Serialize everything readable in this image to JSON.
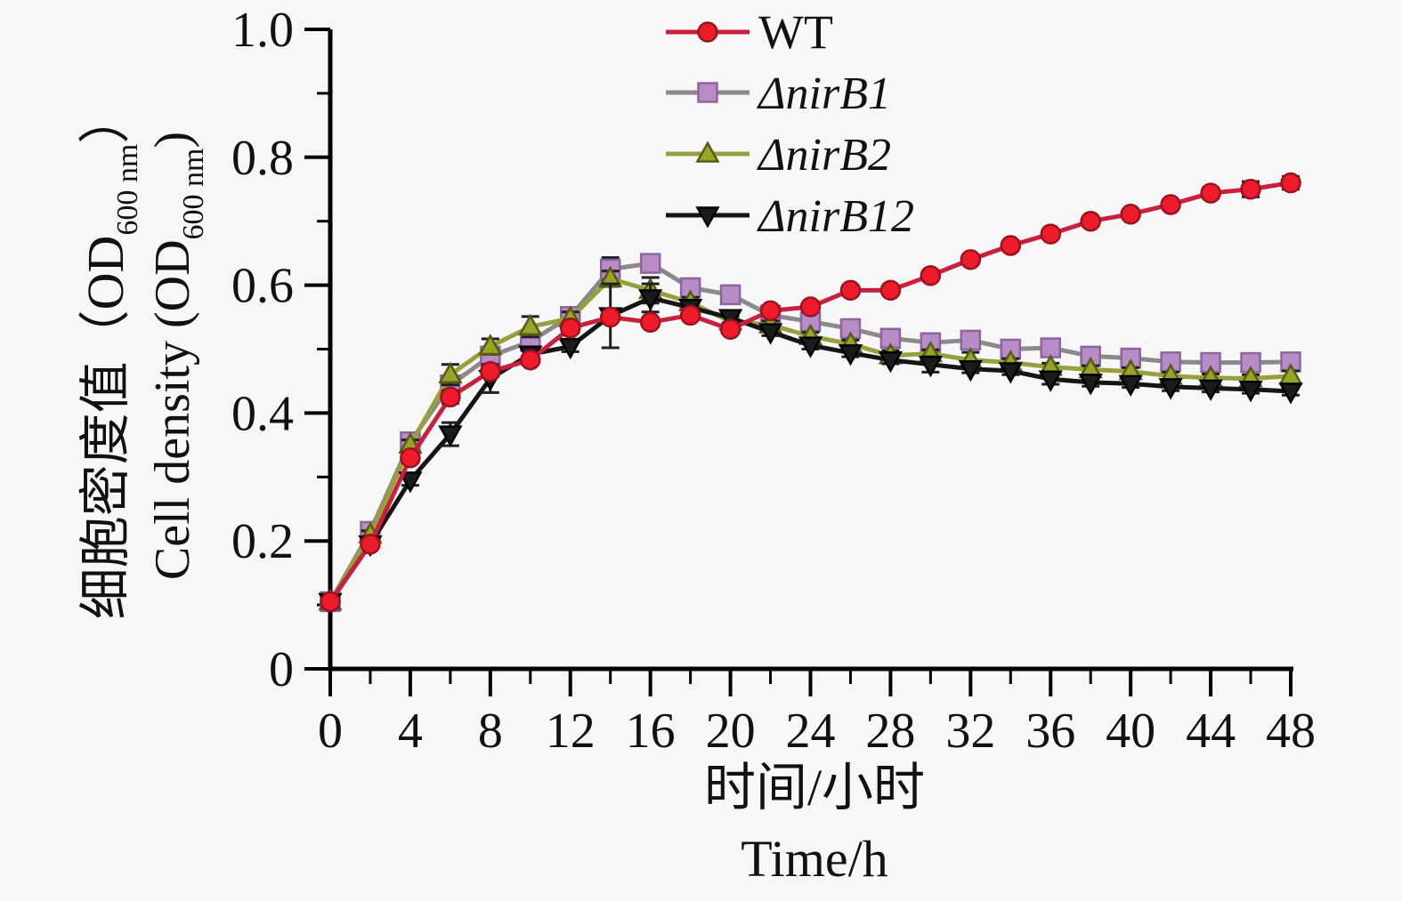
{
  "figure": {
    "background": "#f7f7f7",
    "y_axis": {
      "title_zh_pre": "细胞密度值（OD",
      "title_zh_sub": "600 nm",
      "title_zh_post": "）",
      "title_en_pre": "Cell density (OD",
      "title_en_sub": "600 nm",
      "title_en_post": ")",
      "tick_values": [
        0,
        0.2,
        0.4,
        0.6,
        0.8,
        1.0
      ],
      "tick_labels": [
        "0",
        "0.2",
        "0.4",
        "0.6",
        "0.8",
        "1.0"
      ],
      "minor_tick_values": [
        0.1,
        0.3,
        0.5,
        0.7,
        0.9
      ],
      "range": [
        0,
        1.0
      ]
    },
    "x_axis": {
      "title_zh": "时间/小时",
      "title_en": "Time/h",
      "tick_values": [
        0,
        4,
        8,
        12,
        16,
        20,
        24,
        28,
        32,
        36,
        40,
        44,
        48
      ],
      "tick_labels": [
        "0",
        "4",
        "8",
        "12",
        "16",
        "20",
        "24",
        "28",
        "32",
        "36",
        "40",
        "44",
        "48"
      ],
      "minor_tick_values": [
        2,
        6,
        10,
        14,
        18,
        22,
        26,
        30,
        34,
        38,
        42,
        46
      ],
      "range": [
        0,
        48
      ]
    },
    "error_bar_color": "#1f1f1f",
    "axis_color": "#000000"
  },
  "chart_data": {
    "type": "line",
    "title": "",
    "xlabel": "时间/小时 Time/h",
    "ylabel": "细胞密度值（OD600 nm） Cell density (OD600 nm)",
    "xlim": [
      0,
      48
    ],
    "ylim": [
      0,
      1.0
    ],
    "grid": false,
    "legend_position": "top-center",
    "x": [
      0,
      2,
      4,
      6,
      8,
      10,
      12,
      14,
      16,
      18,
      20,
      22,
      24,
      26,
      28,
      30,
      32,
      34,
      36,
      38,
      40,
      42,
      44,
      46,
      48
    ],
    "series": [
      {
        "name": "WT",
        "label": "WT",
        "italic": false,
        "marker": "circle",
        "line_color": "#c9203f",
        "marker_fill": "#ee1b2a",
        "marker_stroke": "#9c1220",
        "values": [
          0.105,
          0.195,
          0.33,
          0.425,
          0.465,
          0.483,
          0.533,
          0.55,
          0.542,
          0.553,
          0.531,
          0.56,
          0.566,
          0.592,
          0.592,
          0.615,
          0.64,
          0.662,
          0.68,
          0.7,
          0.711,
          0.726,
          0.744,
          0.75,
          0.76
        ],
        "errors": [
          0.005,
          0.005,
          0.008,
          0.01,
          0.008,
          0.006,
          0.008,
          0.006,
          0.005,
          0.005,
          0.005,
          0.005,
          0.005,
          0.005,
          0.005,
          0.005,
          0.005,
          0.005,
          0.005,
          0.005,
          0.005,
          0.005,
          0.008,
          0.012,
          0.01
        ]
      },
      {
        "name": "dnirB1",
        "label": "ΔnirB1",
        "italic": true,
        "marker": "square",
        "line_color": "#8a8a8a",
        "marker_fill": "#b78cc7",
        "marker_stroke": "#8d63a0",
        "values": [
          0.105,
          0.215,
          0.355,
          0.444,
          0.489,
          0.512,
          0.551,
          0.625,
          0.634,
          0.596,
          0.585,
          0.553,
          0.543,
          0.532,
          0.517,
          0.51,
          0.514,
          0.5,
          0.502,
          0.489,
          0.486,
          0.48,
          0.479,
          0.479,
          0.48
        ],
        "errors": [
          0.005,
          0.006,
          0.008,
          0.01,
          0.014,
          0.01,
          0.008,
          0.018,
          0.008,
          0.008,
          0.006,
          0.006,
          0.006,
          0.012,
          0.006,
          0.008,
          0.01,
          0.006,
          0.006,
          0.006,
          0.006,
          0.006,
          0.006,
          0.006,
          0.008
        ]
      },
      {
        "name": "dnirB2",
        "label": "ΔnirB2",
        "italic": true,
        "marker": "triangle-up",
        "line_color": "#98a03c",
        "marker_fill": "#97a426",
        "marker_stroke": "#555c12",
        "values": [
          0.105,
          0.21,
          0.35,
          0.46,
          0.504,
          0.535,
          0.548,
          0.61,
          0.592,
          0.573,
          0.543,
          0.538,
          0.52,
          0.508,
          0.49,
          0.493,
          0.483,
          0.479,
          0.472,
          0.468,
          0.465,
          0.458,
          0.455,
          0.454,
          0.458
        ],
        "errors": [
          0.005,
          0.006,
          0.008,
          0.016,
          0.012,
          0.016,
          0.01,
          0.012,
          0.02,
          0.008,
          0.008,
          0.006,
          0.006,
          0.006,
          0.008,
          0.006,
          0.012,
          0.006,
          0.006,
          0.006,
          0.006,
          0.006,
          0.006,
          0.006,
          0.008
        ]
      },
      {
        "name": "dnirB12",
        "label": "ΔnirB12",
        "italic": true,
        "marker": "triangle-down",
        "line_color": "#151515",
        "marker_fill": "#1b1b1b",
        "marker_stroke": "#000000",
        "values": [
          0.105,
          0.195,
          0.295,
          0.367,
          0.454,
          0.492,
          0.504,
          0.552,
          0.58,
          0.565,
          0.549,
          0.527,
          0.506,
          0.494,
          0.483,
          0.476,
          0.469,
          0.466,
          0.453,
          0.448,
          0.446,
          0.441,
          0.439,
          0.437,
          0.434
        ],
        "errors": [
          0.005,
          0.006,
          0.008,
          0.018,
          0.022,
          0.01,
          0.008,
          0.05,
          0.022,
          0.008,
          0.008,
          0.006,
          0.006,
          0.006,
          0.006,
          0.012,
          0.006,
          0.006,
          0.008,
          0.006,
          0.006,
          0.006,
          0.006,
          0.006,
          0.006
        ]
      }
    ]
  }
}
